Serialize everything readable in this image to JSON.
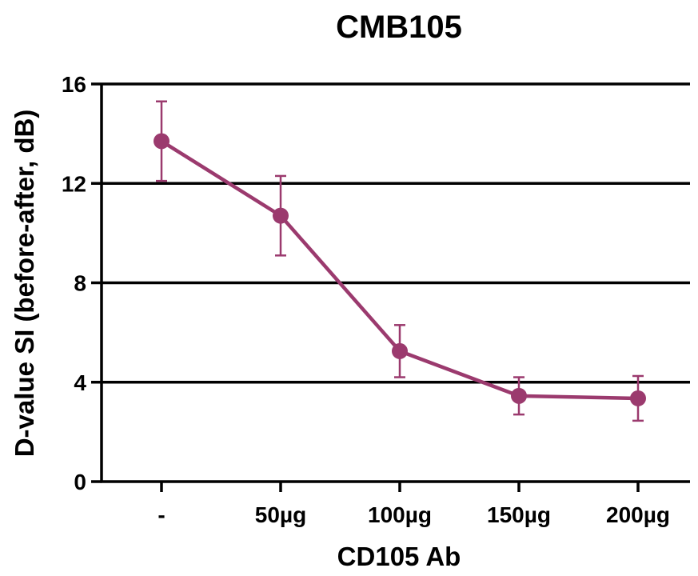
{
  "chart_data": {
    "type": "line",
    "title": "CMB105",
    "xlabel": "CD105 Ab",
    "ylabel": "D-value SI (before-after, dB)",
    "categories": [
      "-",
      "50µg",
      "100µg",
      "150µg",
      "200µg"
    ],
    "series": [
      {
        "values": [
          13.7,
          10.7,
          5.25,
          3.45,
          3.35
        ],
        "error": [
          1.6,
          1.6,
          1.05,
          0.75,
          0.9
        ]
      }
    ],
    "ylim": [
      0,
      16
    ],
    "yticks": [
      0,
      4,
      8,
      12,
      16
    ],
    "grid": "horizontal",
    "colors": {
      "series": "#9b3a6e",
      "axis": "#000000"
    }
  }
}
